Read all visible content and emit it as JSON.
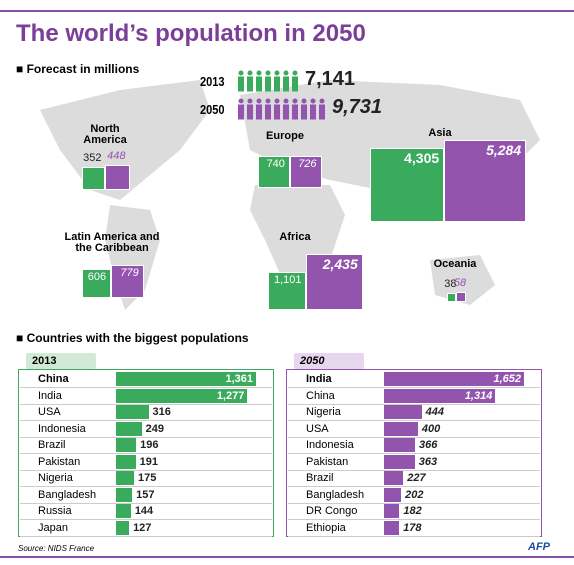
{
  "title": "The world’s population in 2050",
  "forecast_label": "Forecast in millions",
  "world": {
    "years": [
      "2013",
      "2050"
    ],
    "values": [
      7141,
      9731
    ],
    "value_labels": [
      "7,141",
      "9,731"
    ],
    "colors": [
      "#3aaa5c",
      "#9354ad"
    ]
  },
  "regions": [
    {
      "name": "North America",
      "values": [
        352,
        448
      ]
    },
    {
      "name": "Europe",
      "values": [
        740,
        726
      ]
    },
    {
      "name": "Asia",
      "values": [
        4305,
        5284
      ],
      "value_labels": [
        "4,305",
        "5,284"
      ]
    },
    {
      "name": "Latin America and the Caribbean",
      "values": [
        606,
        779
      ]
    },
    {
      "name": "Africa",
      "values": [
        1101,
        2435
      ],
      "value_labels": [
        "1,101",
        "2,435"
      ]
    },
    {
      "name": "Oceania",
      "values": [
        38,
        58
      ]
    }
  ],
  "countries_label": "Countries with the biggest populations",
  "chart_data": [
    {
      "type": "bar",
      "title": "2013",
      "color": "#3aaa5c",
      "categories": [
        "China",
        "India",
        "USA",
        "Indonesia",
        "Brazil",
        "Pakistan",
        "Nigeria",
        "Bangladesh",
        "Russia",
        "Japan"
      ],
      "values": [
        1361,
        1277,
        316,
        249,
        196,
        191,
        175,
        157,
        144,
        127
      ],
      "value_labels": [
        "1,361",
        "1,277",
        "316",
        "249",
        "196",
        "191",
        "175",
        "157",
        "144",
        "127"
      ]
    },
    {
      "type": "bar",
      "title": "2050",
      "color": "#9354ad",
      "categories": [
        "India",
        "China",
        "Nigeria",
        "USA",
        "Indonesia",
        "Pakistan",
        "Brazil",
        "Bangladesh",
        "DR Congo",
        "Ethiopia"
      ],
      "values": [
        1652,
        1314,
        444,
        400,
        366,
        363,
        227,
        202,
        182,
        178
      ],
      "value_labels": [
        "1,652",
        "1,314",
        "444",
        "400",
        "366",
        "363",
        "227",
        "202",
        "182",
        "178"
      ]
    }
  ],
  "source": "Source: NIDS France",
  "logo": "AFP"
}
